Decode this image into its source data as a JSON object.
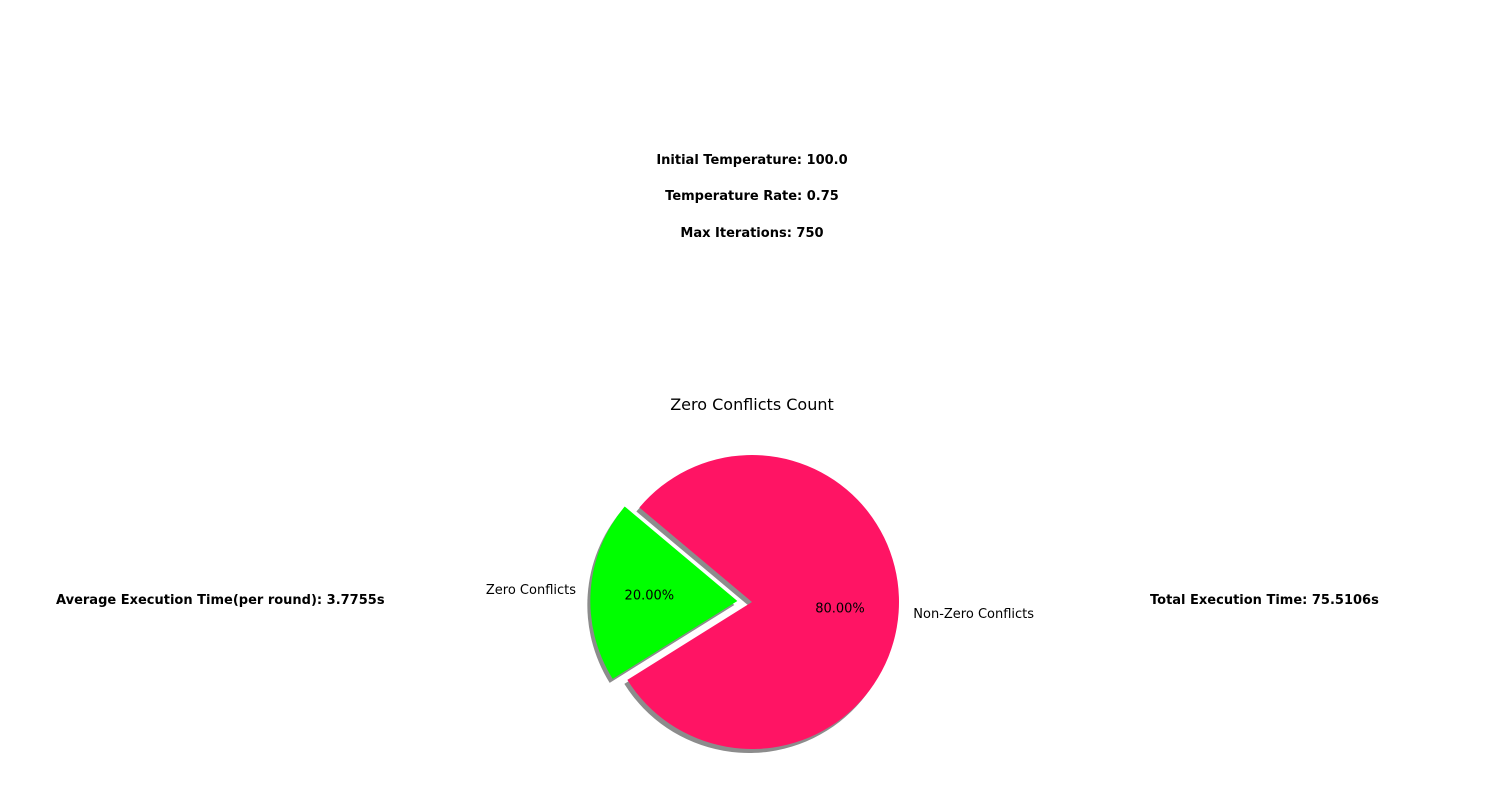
{
  "parameters": {
    "initial_temperature": "Initial Temperature: 100.0",
    "temperature_rate": "Temperature Rate: 0.75",
    "max_iterations": "Max Iterations: 750"
  },
  "stats": {
    "average_execution_time": "Average Execution Time(per round): 3.7755s",
    "total_execution_time": "Total Execution Time: 75.5106s"
  },
  "chart_data": {
    "type": "pie",
    "title": "Zero Conflicts Count",
    "categories": [
      "Zero Conflicts",
      "Non-Zero Conflicts"
    ],
    "values": [
      20,
      80
    ],
    "percent_labels": [
      "20.00%",
      "80.00%"
    ],
    "colors": [
      "#00ff00",
      "#ff1464"
    ],
    "explode": [
      0.1,
      0
    ],
    "shadow": true,
    "start_angle": 140
  }
}
